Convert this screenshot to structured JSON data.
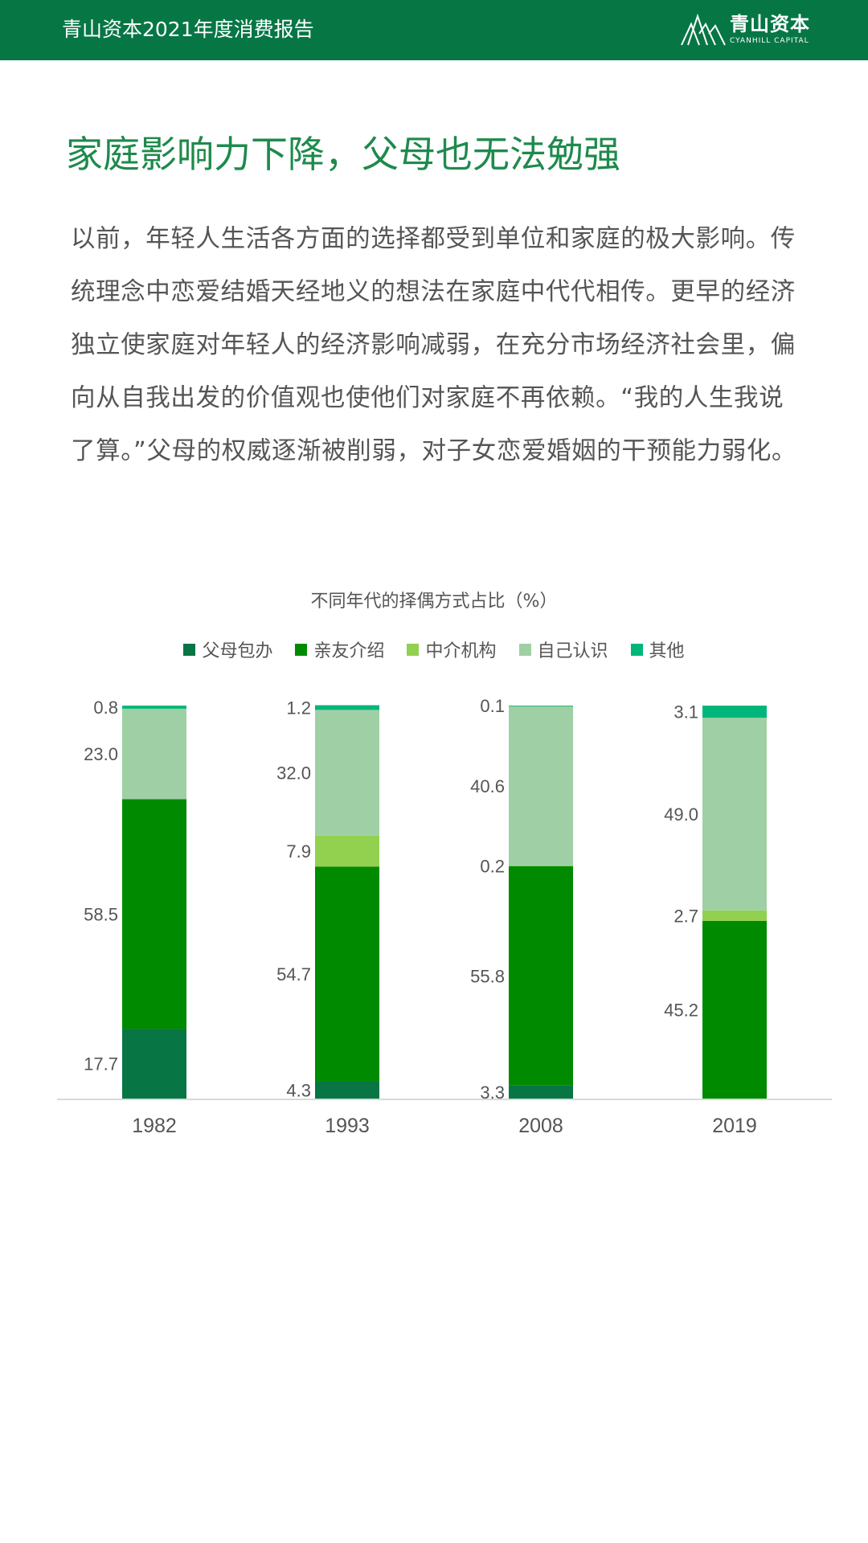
{
  "header": {
    "title": "青山资本2021年度消费报告",
    "logo_cn": "青山资本",
    "logo_en": "CYANHILL CAPITAL",
    "color": "#067645"
  },
  "heading": "家庭影响力下降，父母也无法勉强",
  "paragraph": [
    "以前，年轻人生活各方面的选择都受到单位和家庭的极大影响。传",
    "统理念中恋爱结婚天经地义的想法在家庭中代代相传。更早的经济",
    "独立使家庭对年轻人的经济影响减弱，在充分市场经济社会里，偏",
    "向从自我出发的价值观也使他们对家庭不再依赖。“我的人生我说",
    "了算。”父母的权威逐渐被削弱，对子女恋爱婚姻的干预能力弱化。"
  ],
  "chart_data": {
    "type": "bar",
    "stacked": true,
    "title": "不同年代的择偶方式占比（%）",
    "categories": [
      "1982",
      "1993",
      "2008",
      "2019"
    ],
    "ylim": [
      0,
      100
    ],
    "legend_position": "top-center",
    "series": [
      {
        "name": "父母包办",
        "color": "#077544",
        "values": [
          17.7,
          4.3,
          3.3,
          null
        ]
      },
      {
        "name": "亲友介绍",
        "color": "#008a00",
        "values": [
          58.5,
          54.7,
          55.8,
          45.2
        ]
      },
      {
        "name": "中介机构",
        "color": "#92d050",
        "values": [
          null,
          7.9,
          0.2,
          2.7
        ]
      },
      {
        "name": "自己认识",
        "color": "#9fcfa4",
        "values": [
          23.0,
          32.0,
          40.6,
          49.0
        ]
      },
      {
        "name": "其他",
        "color": "#00b67a",
        "values": [
          0.8,
          1.2,
          0.1,
          3.1
        ]
      }
    ]
  }
}
